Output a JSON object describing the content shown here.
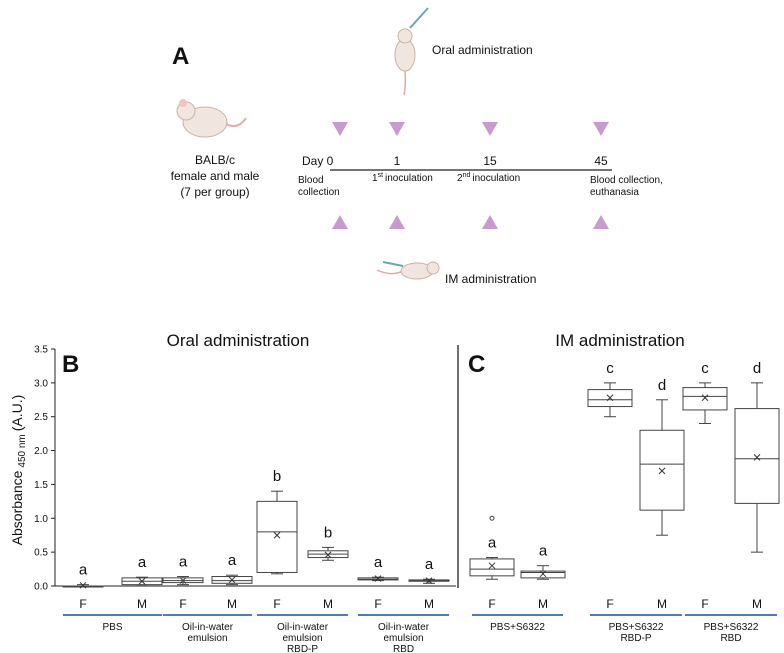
{
  "diagram": {
    "panel": "A",
    "strain": [
      "BALB/c",
      "female and male",
      "(7 per group)"
    ],
    "oral_label": "Oral administration",
    "im_label": "IM administration",
    "days": [
      "Day 0",
      "1",
      "15",
      "45"
    ],
    "day0_note": [
      "Blood",
      "collection"
    ],
    "inoc1": {
      "num": "1",
      "sup": "st",
      "text": "inoculation"
    },
    "inoc2": {
      "num": "2",
      "sup": "nd",
      "text": "inoculation"
    },
    "final_note": [
      "Blood collection,",
      "euthanasia"
    ]
  },
  "chart_data": [
    {
      "type": "box",
      "panel": "B",
      "title": "Oral administration",
      "y_label": "Absorbance",
      "y_label_sub": "450 nm",
      "y_label_unit": "(A.U.)",
      "ylim": [
        0,
        3.5
      ],
      "yticks": [
        {
          "value": 0,
          "label": "0.0"
        },
        0.5,
        {
          "value": 1,
          "label": "1.0"
        },
        1.5,
        {
          "value": 2,
          "label": "2.0"
        },
        2.5,
        {
          "value": 3,
          "label": "3.0"
        },
        3.5
      ],
      "categories": [
        "F",
        "M",
        "F",
        "M",
        "F",
        "M",
        "F",
        "M"
      ],
      "groups": [
        [
          "PBS"
        ],
        [
          "Oil-in-water",
          "emulsion"
        ],
        [
          "Oil-in-water",
          "emulsion",
          "RBD-P"
        ],
        [
          "Oil-in-water",
          "emulsion",
          "RBD"
        ]
      ],
      "letters": [
        "a",
        "a",
        "a",
        "a",
        "b",
        "b",
        "a",
        "a"
      ],
      "color": "#4a7cc9",
      "boxes": [
        {
          "min": 0,
          "q1": 0,
          "median": 0,
          "q3": 0,
          "max": 0.02,
          "mean": 0.01
        },
        {
          "min": 0.02,
          "q1": 0.02,
          "median": 0.07,
          "q3": 0.12,
          "max": 0.13,
          "mean": 0.07
        },
        {
          "min": 0.02,
          "q1": 0.05,
          "median": 0.08,
          "q3": 0.12,
          "max": 0.14,
          "mean": 0.08
        },
        {
          "min": 0.02,
          "q1": 0.04,
          "median": 0.08,
          "q3": 0.14,
          "max": 0.16,
          "mean": 0.09
        },
        {
          "min": 0.18,
          "q1": 0.2,
          "median": 0.8,
          "q3": 1.25,
          "max": 1.4,
          "mean": 0.75
        },
        {
          "min": 0.38,
          "q1": 0.42,
          "median": 0.47,
          "q3": 0.52,
          "max": 0.57,
          "mean": 0.46
        },
        {
          "min": 0.08,
          "q1": 0.09,
          "median": 0.1,
          "q3": 0.12,
          "max": 0.13,
          "mean": 0.11
        },
        {
          "min": 0.04,
          "q1": 0.07,
          "median": 0.08,
          "q3": 0.09,
          "max": 0.1,
          "mean": 0.08
        }
      ]
    },
    {
      "type": "box",
      "panel": "C",
      "title": "IM administration",
      "ylim": [
        0,
        3.5
      ],
      "categories": [
        "F",
        "M",
        "F",
        "M",
        "F",
        "M"
      ],
      "groups": [
        [
          "PBS+S6322"
        ],
        [
          "PBS+S6322",
          "RBD-P"
        ],
        [
          "PBS+S6322",
          "RBD"
        ]
      ],
      "letters": [
        "a",
        "a",
        "c",
        "d",
        "c",
        "d"
      ],
      "color": "#4a7cc9",
      "boxes": [
        {
          "min": 0.1,
          "q1": 0.15,
          "median": 0.25,
          "q3": 0.4,
          "max": 0.42,
          "mean": 0.3,
          "outliers": [
            1.0
          ]
        },
        {
          "min": 0.1,
          "q1": 0.12,
          "median": 0.2,
          "q3": 0.22,
          "max": 0.3,
          "mean": 0.18
        },
        {
          "min": 2.5,
          "q1": 2.65,
          "median": 2.75,
          "q3": 2.9,
          "max": 3.0,
          "mean": 2.78
        },
        {
          "min": 0.75,
          "q1": 1.12,
          "median": 1.8,
          "q3": 2.3,
          "max": 2.75,
          "mean": 1.7
        },
        {
          "min": 2.4,
          "q1": 2.6,
          "median": 2.8,
          "q3": 2.93,
          "max": 3.0,
          "mean": 2.78
        },
        {
          "min": 0.5,
          "q1": 1.22,
          "median": 1.88,
          "q3": 2.62,
          "max": 3.0,
          "mean": 1.9
        }
      ]
    }
  ]
}
